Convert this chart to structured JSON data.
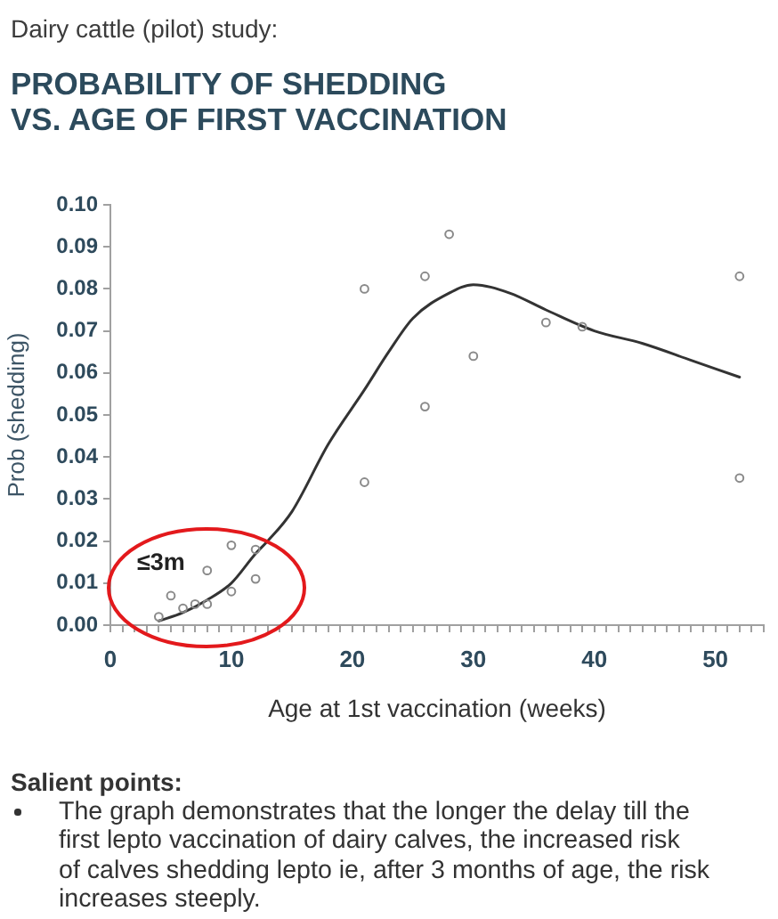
{
  "chart_data": {
    "type": "scatter",
    "subtitle": "Dairy cattle (pilot) study:",
    "title": "PROBABILITY OF SHEDDING\nVS. AGE OF FIRST VACCINATION",
    "xlabel": "Age at 1st vaccination (weeks)",
    "ylabel": "Prob (shedding)",
    "annotations": [
      "≤3m",
      "Salient points:",
      "The graph demonstrates that the longer the delay till the\nfirst lepto vaccination of dairy calves, the increased risk\nof calves shedding lepto ie, after 3 months of age, the risk\nincreases steeply."
    ],
    "series": [
      {
        "color": "#8a8a8a",
        "x": [
          4,
          5,
          6,
          7,
          8,
          8,
          10,
          10,
          12,
          12,
          21,
          21,
          26,
          26,
          28,
          30,
          36,
          39,
          52,
          52
        ],
        "values": [
          0.002,
          0.007,
          0.004,
          0.005,
          0.005,
          0.013,
          0.008,
          0.019,
          0.011,
          0.018,
          0.08,
          0.034,
          0.083,
          0.052,
          0.093,
          0.064,
          0.072,
          0.071,
          0.083,
          0.035
        ]
      },
      {
        "type": "line",
        "marker": "none",
        "line_style": "solid",
        "color": "#333333",
        "x": [
          4,
          6,
          8,
          10,
          12,
          13,
          15,
          18,
          21,
          23,
          25,
          28,
          30,
          33,
          36,
          40,
          44,
          48,
          52
        ],
        "values": [
          0.001,
          0.003,
          0.006,
          0.01,
          0.017,
          0.02,
          0.027,
          0.043,
          0.056,
          0.065,
          0.073,
          0.079,
          0.081,
          0.079,
          0.075,
          0.07,
          0.067,
          0.063,
          0.059
        ]
      }
    ],
    "xlim": [
      0,
      54
    ],
    "ylim": [
      0,
      0.1
    ],
    "xticks": [
      0,
      {
        "value": 1,
        "label": null
      },
      {
        "value": 2,
        "label": null
      },
      {
        "value": 3,
        "label": null
      },
      {
        "value": 4,
        "label": null
      },
      {
        "value": 5,
        "label": null
      },
      {
        "value": 6,
        "label": null
      },
      {
        "value": 7,
        "label": null
      },
      {
        "value": 8,
        "label": null
      },
      {
        "value": 9,
        "label": null
      },
      10,
      {
        "value": 11,
        "label": null
      },
      {
        "value": 12,
        "label": null
      },
      {
        "value": 13,
        "label": null
      },
      {
        "value": 14,
        "label": null
      },
      {
        "value": 15,
        "label": null
      },
      {
        "value": 16,
        "label": null
      },
      {
        "value": 17,
        "label": null
      },
      {
        "value": 18,
        "label": null
      },
      {
        "value": 19,
        "label": null
      },
      20,
      {
        "value": 21,
        "label": null
      },
      {
        "value": 22,
        "label": null
      },
      {
        "value": 23,
        "label": null
      },
      {
        "value": 24,
        "label": null
      },
      {
        "value": 25,
        "label": null
      },
      {
        "value": 26,
        "label": null
      },
      {
        "value": 27,
        "label": null
      },
      {
        "value": 28,
        "label": null
      },
      {
        "value": 29,
        "label": null
      },
      30,
      {
        "value": 31,
        "label": null
      },
      {
        "value": 32,
        "label": null
      },
      {
        "value": 33,
        "label": null
      },
      {
        "value": 34,
        "label": null
      },
      {
        "value": 35,
        "label": null
      },
      {
        "value": 36,
        "label": null
      },
      {
        "value": 37,
        "label": null
      },
      {
        "value": 38,
        "label": null
      },
      {
        "value": 39,
        "label": null
      },
      40,
      {
        "value": 41,
        "label": null
      },
      {
        "value": 42,
        "label": null
      },
      {
        "value": 43,
        "label": null
      },
      {
        "value": 44,
        "label": null
      },
      {
        "value": 45,
        "label": null
      },
      {
        "value": 46,
        "label": null
      },
      {
        "value": 47,
        "label": null
      },
      {
        "value": 48,
        "label": null
      },
      {
        "value": 49,
        "label": null
      },
      50,
      {
        "value": 51,
        "label": null
      },
      {
        "value": 52,
        "label": null
      },
      {
        "value": 53,
        "label": null
      },
      {
        "value": 54,
        "label": null
      }
    ],
    "yticks": [
      {
        "value": 0,
        "label": "0.00"
      },
      0.01,
      0.02,
      0.03,
      0.04,
      0.05,
      0.06,
      0.07,
      0.08,
      0.09,
      {
        "value": 0.1,
        "label": "0.10"
      }
    ],
    "marker": "circle",
    "grid": false,
    "legend": false
  }
}
